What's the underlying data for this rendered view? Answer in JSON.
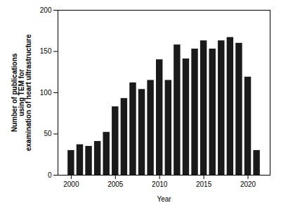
{
  "chart_data": {
    "type": "bar",
    "x": [
      2000,
      2001,
      2002,
      2003,
      2004,
      2005,
      2006,
      2007,
      2008,
      2009,
      2010,
      2011,
      2012,
      2013,
      2014,
      2015,
      2016,
      2017,
      2018,
      2019,
      2020,
      2021
    ],
    "values": [
      30,
      37,
      35,
      41,
      52,
      83,
      93,
      112,
      104,
      115,
      140,
      115,
      158,
      141,
      153,
      163,
      153,
      163,
      167,
      160,
      119,
      30
    ],
    "color": "#1a1a1a",
    "xlabel": "Year",
    "ylabel": "Number of publications\nusing TEM for\nexamination of heart ultrastructure",
    "xlim": [
      1998.5,
      2022.5
    ],
    "xticks": [
      2000,
      2005,
      2010,
      2015,
      2020
    ],
    "ylim": [
      0,
      200
    ],
    "yticks": [
      0,
      50,
      100,
      150,
      200
    ]
  }
}
